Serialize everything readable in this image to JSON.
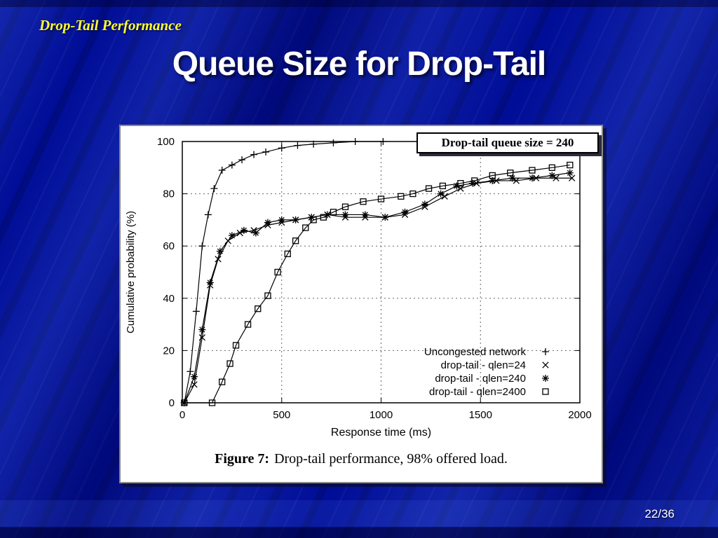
{
  "slide": {
    "kicker": "Drop-Tail Performance",
    "title": "Queue Size for Drop-Tail",
    "page_number": "22/36",
    "colors": {
      "background": "#000d96",
      "kicker": "#ffff33",
      "title": "#ffffff"
    }
  },
  "figure": {
    "callout": "Drop-tail queue size = 240",
    "caption_prefix": "Figure 7:",
    "caption_text": "Drop-tail performance, 98% offered load."
  },
  "chart_data": {
    "type": "line",
    "title": "",
    "xlabel": "Response time (ms)",
    "ylabel": "Cumulative probability (%)",
    "xlim": [
      0,
      2000
    ],
    "ylim": [
      0,
      100
    ],
    "x_ticks": [
      0,
      500,
      1000,
      1500,
      2000
    ],
    "y_ticks": [
      0,
      20,
      40,
      60,
      80,
      100
    ],
    "grid": "dashed",
    "legend_position": "inside bottom-right",
    "line_color": "#000000",
    "series": [
      {
        "name": "Uncongested network",
        "marker": "plus",
        "points": [
          [
            10,
            0
          ],
          [
            40,
            12
          ],
          [
            70,
            35
          ],
          [
            100,
            60
          ],
          [
            130,
            72
          ],
          [
            160,
            82
          ],
          [
            200,
            89
          ],
          [
            250,
            91
          ],
          [
            300,
            93
          ],
          [
            360,
            95
          ],
          [
            420,
            96
          ],
          [
            500,
            97.5
          ],
          [
            580,
            98.5
          ],
          [
            660,
            99
          ],
          [
            760,
            99.5
          ],
          [
            870,
            100
          ],
          [
            1010,
            100
          ]
        ]
      },
      {
        "name": "drop-tail - qlen=24",
        "marker": "cross",
        "points": [
          [
            10,
            0
          ],
          [
            60,
            7
          ],
          [
            100,
            25
          ],
          [
            140,
            45
          ],
          [
            180,
            55
          ],
          [
            230,
            62
          ],
          [
            290,
            65
          ],
          [
            360,
            66
          ],
          [
            430,
            68
          ],
          [
            500,
            69
          ],
          [
            570,
            70
          ],
          [
            650,
            71
          ],
          [
            730,
            72
          ],
          [
            820,
            71
          ],
          [
            920,
            71
          ],
          [
            1020,
            71
          ],
          [
            1120,
            72
          ],
          [
            1220,
            75
          ],
          [
            1320,
            79
          ],
          [
            1400,
            82
          ],
          [
            1480,
            84
          ],
          [
            1580,
            85
          ],
          [
            1680,
            85
          ],
          [
            1780,
            86
          ],
          [
            1880,
            86
          ],
          [
            1960,
            86
          ]
        ]
      },
      {
        "name": "drop-tail - qlen=240",
        "marker": "star",
        "points": [
          [
            10,
            0
          ],
          [
            60,
            10
          ],
          [
            100,
            28
          ],
          [
            140,
            46
          ],
          [
            190,
            58
          ],
          [
            250,
            64
          ],
          [
            310,
            66
          ],
          [
            370,
            65
          ],
          [
            430,
            69
          ],
          [
            500,
            70
          ],
          [
            570,
            70
          ],
          [
            650,
            71
          ],
          [
            730,
            72
          ],
          [
            820,
            72
          ],
          [
            920,
            72
          ],
          [
            1020,
            71
          ],
          [
            1120,
            73
          ],
          [
            1220,
            76
          ],
          [
            1300,
            80
          ],
          [
            1380,
            83
          ],
          [
            1460,
            84
          ],
          [
            1560,
            85
          ],
          [
            1660,
            86
          ],
          [
            1760,
            86
          ],
          [
            1860,
            87
          ],
          [
            1950,
            88
          ]
        ]
      },
      {
        "name": "drop-tail - qlen=2400",
        "marker": "square",
        "points": [
          [
            10,
            0
          ],
          [
            150,
            0
          ],
          [
            200,
            8
          ],
          [
            240,
            15
          ],
          [
            270,
            22
          ],
          [
            330,
            30
          ],
          [
            380,
            36
          ],
          [
            430,
            41
          ],
          [
            480,
            50
          ],
          [
            530,
            57
          ],
          [
            570,
            62
          ],
          [
            620,
            67
          ],
          [
            660,
            70
          ],
          [
            710,
            71
          ],
          [
            760,
            73
          ],
          [
            820,
            75
          ],
          [
            910,
            77
          ],
          [
            1000,
            78
          ],
          [
            1100,
            79
          ],
          [
            1160,
            80
          ],
          [
            1240,
            82
          ],
          [
            1310,
            83
          ],
          [
            1400,
            84
          ],
          [
            1470,
            85
          ],
          [
            1560,
            87
          ],
          [
            1650,
            88
          ],
          [
            1760,
            89
          ],
          [
            1860,
            90
          ],
          [
            1950,
            91
          ]
        ]
      }
    ]
  }
}
